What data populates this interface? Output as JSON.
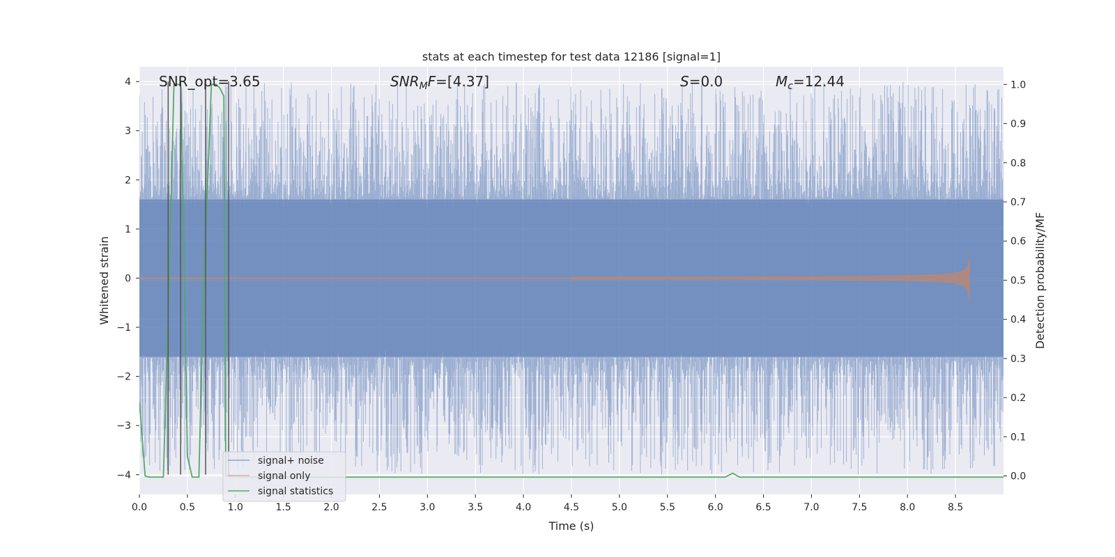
{
  "chart_data": {
    "type": "line",
    "title": "stats at each timestep for test data 12186 [signal=1]",
    "xlabel": "Time (s)",
    "ylabel": "Whitened strain",
    "ylabel_right": "Detection probability/MF",
    "xlim": [
      0.0,
      9.0
    ],
    "ylim": [
      -4.4,
      4.3
    ],
    "ylim_right": [
      -0.047,
      1.045
    ],
    "x_ticks": [
      0.0,
      0.5,
      1.0,
      1.5,
      2.0,
      2.5,
      3.0,
      3.5,
      4.0,
      4.5,
      5.0,
      5.5,
      6.0,
      6.5,
      7.0,
      7.5,
      8.0,
      8.5
    ],
    "x_tick_labels": [
      "0.0",
      "0.5",
      "1.0",
      "1.5",
      "2.0",
      "2.5",
      "3.0",
      "3.5",
      "4.0",
      "4.5",
      "5.0",
      "5.5",
      "6.0",
      "6.5",
      "7.0",
      "7.5",
      "8.0",
      "8.5"
    ],
    "y_ticks": [
      -4,
      -3,
      -2,
      -1,
      0,
      1,
      2,
      3,
      4
    ],
    "y_tick_labels": [
      "−4",
      "−3",
      "−2",
      "−1",
      "0",
      "1",
      "2",
      "3",
      "4"
    ],
    "y_right_ticks": [
      0.0,
      0.1,
      0.2,
      0.3,
      0.4,
      0.5,
      0.6,
      0.7,
      0.8,
      0.9,
      1.0
    ],
    "y_right_tick_labels": [
      "0.0",
      "0.1",
      "0.2",
      "0.3",
      "0.4",
      "0.5",
      "0.6",
      "0.7",
      "0.8",
      "0.9",
      "1.0"
    ],
    "grid": true,
    "legend_position": "lower-left",
    "annotations": [
      {
        "prefix": "SNR_opt=3.65",
        "italic": "",
        "sub": "",
        "suffix": ""
      },
      {
        "prefix": "",
        "italic": "SNR",
        "sub": "M",
        "mid_italic": "F",
        "suffix": "=[4.37]"
      },
      {
        "prefix": "",
        "italic": "S",
        "sub": "",
        "suffix": "=0.0"
      },
      {
        "prefix": "",
        "italic": "M",
        "sub": "c",
        "suffix": "=12.44"
      }
    ],
    "series": [
      {
        "name": "signal+ noise",
        "color": "#4c72b0",
        "kind": "noise",
        "axis": "left",
        "alpha": 0.5,
        "amplitude_typical": 1.6,
        "amplitude_max": 4.0,
        "x_range": [
          0.0,
          9.0
        ]
      },
      {
        "name": "signal only",
        "color": "#dd8452",
        "kind": "chirp",
        "axis": "left",
        "alpha": 0.5,
        "x_range": [
          0.0,
          8.65
        ],
        "peak_amplitude": 0.6
      },
      {
        "name": "signal statistics",
        "color": "#55a868",
        "kind": "line",
        "axis": "right",
        "x": [
          0.0,
          0.06,
          0.1,
          0.25,
          0.31,
          0.36,
          0.39,
          0.43,
          0.47,
          0.5,
          0.55,
          0.62,
          0.67,
          0.7,
          0.75,
          0.8,
          0.84,
          0.88,
          0.9,
          1.0,
          6.1,
          6.18,
          6.25,
          9.0
        ],
        "y": [
          0.19,
          0.0,
          -0.003,
          -0.003,
          0.5,
          1.0,
          1.0,
          1.0,
          0.5,
          0.05,
          -0.003,
          -0.003,
          0.5,
          0.68,
          1.0,
          1.0,
          0.99,
          0.97,
          0.0,
          -0.003,
          -0.003,
          0.007,
          -0.003,
          -0.003
        ]
      }
    ],
    "vertical_markers": {
      "color": "#555555",
      "x": [
        0.3,
        0.43,
        0.69,
        0.93
      ]
    }
  }
}
